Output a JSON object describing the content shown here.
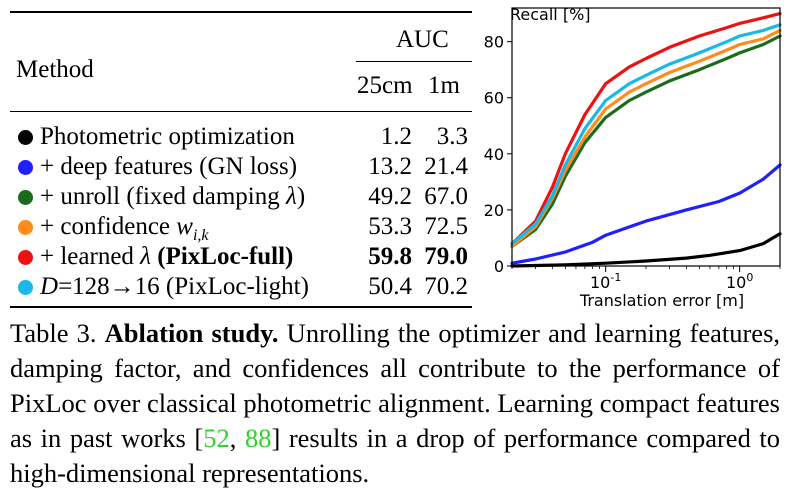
{
  "table": {
    "method_header": "Method",
    "auc_header": "AUC",
    "sub_headers": [
      "25cm",
      "1m"
    ],
    "rows": [
      {
        "color": "#000000",
        "label": "Photometric optimization",
        "v1": "1.2",
        "v2": "3.3",
        "bold": false
      },
      {
        "color": "#1f1fff",
        "label": "+ deep features (GN loss)",
        "v1": "13.2",
        "v2": "21.4",
        "bold": false
      },
      {
        "color": "#1a6b1a",
        "label": "+ unroll (fixed damping λ)",
        "v1": "49.2",
        "v2": "67.0",
        "bold": false
      },
      {
        "color": "#ff8c1a",
        "label": "+ confidence wi,k",
        "v1": "53.3",
        "v2": "72.5",
        "bold": false
      },
      {
        "color": "#ee1111",
        "label": "+ learned λ (PixLoc-full)",
        "v1": "59.8",
        "v2": "79.0",
        "bold": true
      },
      {
        "color": "#19b8e6",
        "label": "D=128→16 (PixLoc-light)",
        "v1": "50.4",
        "v2": "70.2",
        "bold": false
      }
    ],
    "label_parts": {
      "r2_unroll": "+ unroll (fixed damping ",
      "r2_lambda": "λ",
      "r2_close": ")",
      "r3_conf": "+ confidence ",
      "r3_w": "w",
      "r3_sub": "i,k",
      "r4_learned": "+ learned ",
      "r4_lambda": "λ",
      "r4_pix": " (PixLoc-full)",
      "r5_D": "D",
      "r5_rest": "=128→16 (PixLoc-light)"
    }
  },
  "chart_data": {
    "type": "line",
    "title": "Recall [%]",
    "xlabel": "Translation error [m]",
    "ylabel": "Recall [%]",
    "x_scale": "log",
    "xlim": [
      0.02,
      2.0
    ],
    "ylim": [
      0,
      92
    ],
    "yticks": [
      "0",
      "20",
      "40",
      "60",
      "80"
    ],
    "xticks": [
      "10^-1",
      "10^0"
    ],
    "series": [
      {
        "name": "Photometric optimization",
        "color": "#000000",
        "x": [
          0.02,
          0.05,
          0.1,
          0.2,
          0.4,
          0.6,
          1.0,
          1.5,
          2.0
        ],
        "y": [
          0,
          0.4,
          1.0,
          1.8,
          2.8,
          3.8,
          5.5,
          8.0,
          11.5
        ]
      },
      {
        "name": "+ deep features (GN loss)",
        "color": "#1f1fff",
        "x": [
          0.02,
          0.03,
          0.05,
          0.08,
          0.1,
          0.2,
          0.4,
          0.7,
          1.0,
          1.5,
          2.0
        ],
        "y": [
          1,
          2.5,
          5,
          8.5,
          11,
          16,
          20,
          23,
          26,
          31,
          36
        ]
      },
      {
        "name": "+ unroll (fixed damping λ)",
        "color": "#1a6b1a",
        "x": [
          0.02,
          0.03,
          0.04,
          0.05,
          0.07,
          0.1,
          0.15,
          0.2,
          0.3,
          0.5,
          0.8,
          1.0,
          1.5,
          2.0
        ],
        "y": [
          7,
          13,
          22,
          32,
          44,
          53,
          59,
          62,
          66,
          70,
          74,
          76,
          79,
          82
        ]
      },
      {
        "name": "+ confidence wi,k",
        "color": "#ff8c1a",
        "x": [
          0.02,
          0.03,
          0.04,
          0.05,
          0.07,
          0.1,
          0.15,
          0.2,
          0.3,
          0.5,
          0.8,
          1.0,
          1.5,
          2.0
        ],
        "y": [
          7,
          14,
          24,
          34,
          46,
          56,
          62,
          65,
          69,
          73,
          77,
          79,
          81,
          84
        ]
      },
      {
        "name": "+ learned λ (PixLoc-full)",
        "color": "#ee1111",
        "x": [
          0.02,
          0.03,
          0.04,
          0.05,
          0.07,
          0.1,
          0.15,
          0.2,
          0.3,
          0.5,
          0.8,
          1.0,
          1.5,
          2.0
        ],
        "y": [
          8,
          16,
          28,
          40,
          54,
          65,
          71,
          74,
          78,
          82,
          85,
          86.5,
          88.5,
          90
        ]
      },
      {
        "name": "D=128→16 (PixLoc-light)",
        "color": "#19b8e6",
        "x": [
          0.02,
          0.03,
          0.04,
          0.05,
          0.07,
          0.1,
          0.15,
          0.2,
          0.3,
          0.5,
          0.8,
          1.0,
          1.5,
          2.0
        ],
        "y": [
          8,
          15,
          25,
          36,
          49,
          59,
          65,
          68,
          72,
          76,
          80,
          82,
          84,
          86
        ]
      }
    ]
  },
  "caption": {
    "label": "Table 3.",
    "title": "Ablation study.",
    "text1": " Unrolling the optimizer and learning features, damping factor, and confidences all contribute to the performance of PixLoc over classical photometric alignment. Learning compact features as in past works [",
    "ref1": "52",
    "sep": ", ",
    "ref2": "88",
    "text2": "] results in a drop of performance compared to high-dimensional representations."
  }
}
